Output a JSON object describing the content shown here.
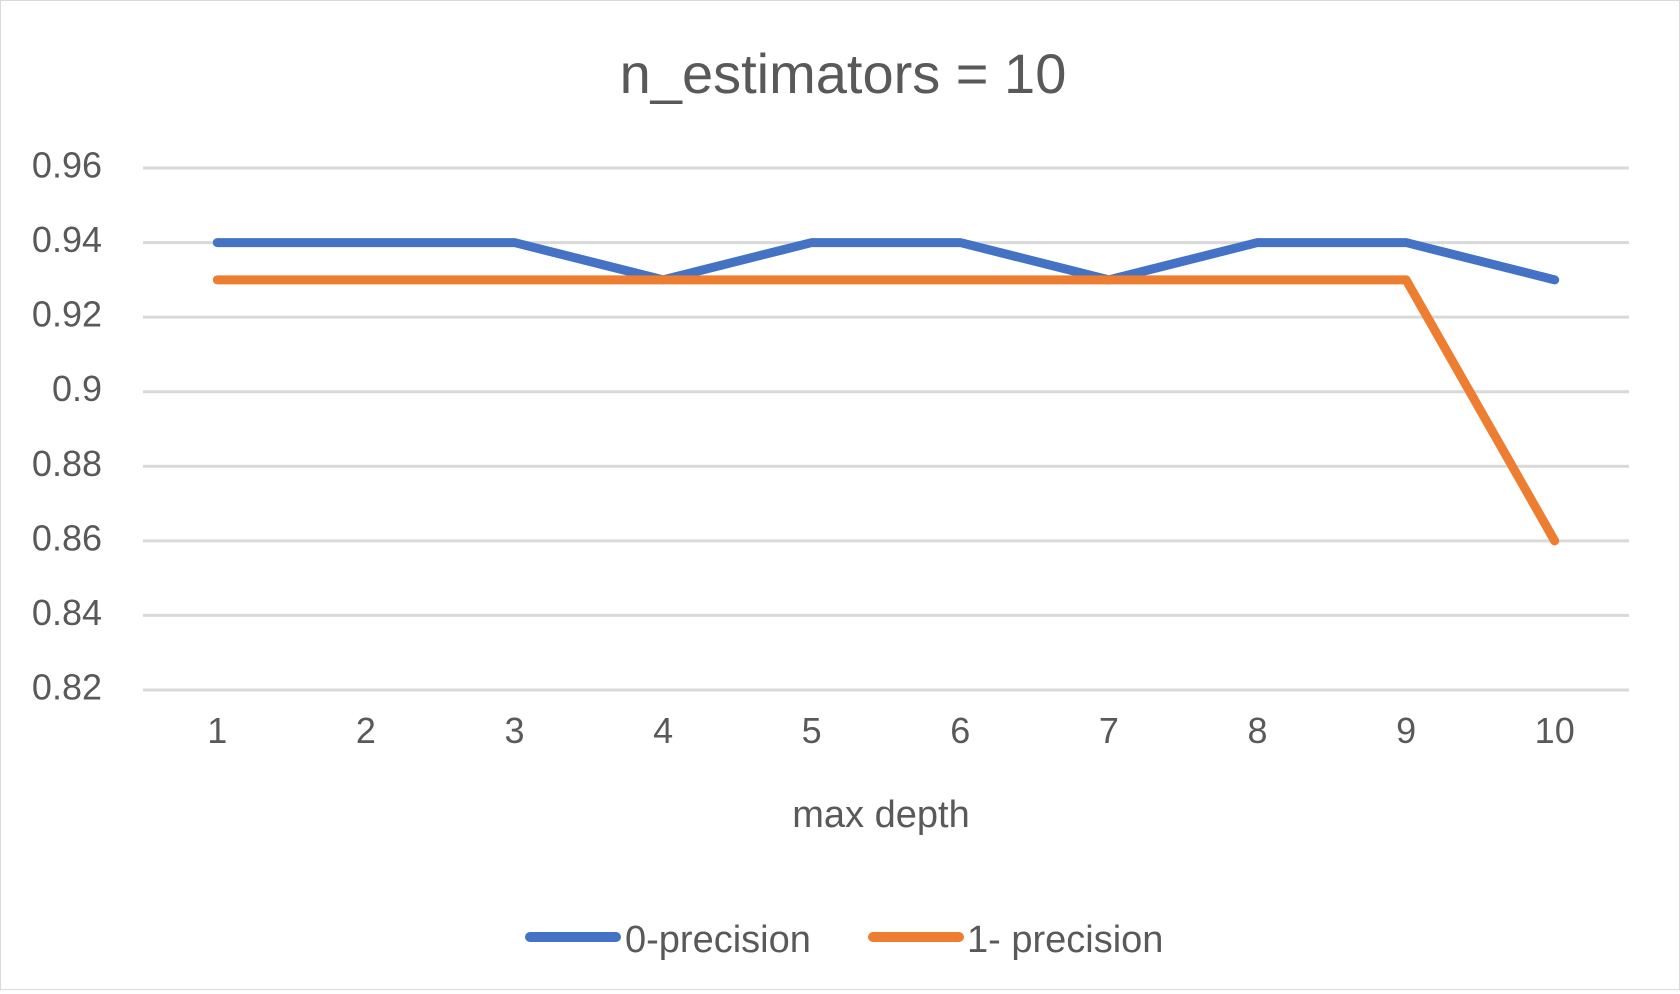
{
  "chart_data": {
    "type": "line",
    "title": "n_estimators = 10",
    "xlabel": "max depth",
    "ylabel": "",
    "categories": [
      "1",
      "2",
      "3",
      "4",
      "5",
      "6",
      "7",
      "8",
      "9",
      "10"
    ],
    "yticks": [
      "0.96",
      "0.94",
      "0.92",
      "0.9",
      "0.88",
      "0.86",
      "0.84",
      "0.82"
    ],
    "ylim": [
      0.82,
      0.96
    ],
    "grid": true,
    "legend_position": "bottom",
    "series": [
      {
        "name": "0-precision",
        "color": "#4472c4",
        "values": [
          0.94,
          0.94,
          0.94,
          0.93,
          0.94,
          0.94,
          0.93,
          0.94,
          0.94,
          0.93
        ]
      },
      {
        "name": "1- precision",
        "color": "#ed7d31",
        "values": [
          0.93,
          0.93,
          0.93,
          0.93,
          0.93,
          0.93,
          0.93,
          0.93,
          0.93,
          0.86
        ]
      }
    ]
  }
}
